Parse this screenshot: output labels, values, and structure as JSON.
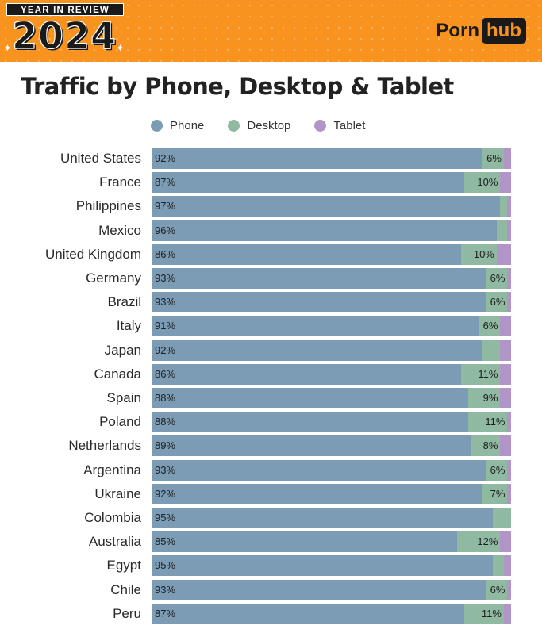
{
  "header": {
    "badge_top": "YEAR IN REVIEW",
    "badge_year": "2024",
    "logo_left": "Porn",
    "logo_right": "hub"
  },
  "colors": {
    "banner": "#f7931e",
    "phone": "#7b9cb4",
    "desktop": "#8fb9a1",
    "tablet": "#b295c8"
  },
  "chart_data": {
    "type": "bar",
    "orientation": "horizontal",
    "stacked": true,
    "title": "Traffic by Phone, Desktop & Tablet",
    "legend": [
      "Phone",
      "Desktop",
      "Tablet"
    ],
    "legend_position": "top",
    "categories": [
      "United States",
      "France",
      "Philippines",
      "Mexico",
      "United Kingdom",
      "Germany",
      "Brazil",
      "Italy",
      "Japan",
      "Canada",
      "Spain",
      "Poland",
      "Netherlands",
      "Argentina",
      "Ukraine",
      "Colombia",
      "Australia",
      "Egypt",
      "Chile",
      "Peru"
    ],
    "series": [
      {
        "name": "Phone",
        "values": [
          92,
          87,
          97,
          96,
          86,
          93,
          93,
          91,
          92,
          86,
          88,
          88,
          89,
          93,
          92,
          95,
          85,
          95,
          93,
          87
        ],
        "labels": [
          "92%",
          "87%",
          "97%",
          "96%",
          "86%",
          "93%",
          "93%",
          "91%",
          "92%",
          "86%",
          "88%",
          "88%",
          "89%",
          "93%",
          "92%",
          "95%",
          "85%",
          "95%",
          "93%",
          "87%"
        ]
      },
      {
        "name": "Desktop",
        "values": [
          6,
          10,
          2,
          3,
          10,
          6,
          6,
          6,
          5,
          11,
          9,
          11,
          8,
          6,
          7,
          5,
          12,
          3,
          6,
          11
        ],
        "labels": [
          "6%",
          "10%",
          "",
          "",
          "10%",
          "6%",
          "6%",
          "6%",
          "",
          "11%",
          "9%",
          "11%",
          "8%",
          "6%",
          "7%",
          "",
          "12%",
          "",
          "6%",
          "11%"
        ]
      },
      {
        "name": "Tablet",
        "values": [
          2,
          3,
          1,
          1,
          4,
          1,
          1,
          3,
          3,
          3,
          3,
          1,
          3,
          1,
          1,
          0,
          3,
          2,
          1,
          2
        ]
      }
    ],
    "xlim": [
      0,
      100
    ]
  }
}
